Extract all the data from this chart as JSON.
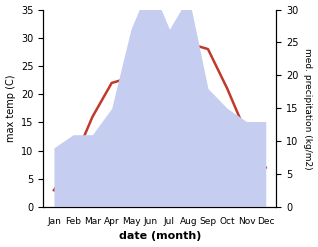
{
  "months": [
    "Jan",
    "Feb",
    "Mar",
    "Apr",
    "May",
    "Jun",
    "Jul",
    "Aug",
    "Sep",
    "Oct",
    "Nov",
    "Dec"
  ],
  "temperature": [
    3,
    8,
    16,
    22,
    23,
    26,
    29,
    29,
    28,
    21,
    13,
    7
  ],
  "precipitation": [
    9,
    11,
    11,
    15,
    27,
    34,
    27,
    32,
    18,
    15,
    13,
    13
  ],
  "temp_color": "#c0392b",
  "precip_color": "#c5cdf0",
  "xlabel": "date (month)",
  "ylabel_left": "max temp (C)",
  "ylabel_right": "med. precipitation (kg/m2)",
  "ylim_left": [
    0,
    35
  ],
  "ylim_right": [
    0,
    30
  ],
  "yticks_left": [
    0,
    5,
    10,
    15,
    20,
    25,
    30,
    35
  ],
  "yticks_right": [
    0,
    5,
    10,
    15,
    20,
    25,
    30
  ],
  "background_color": "#ffffff"
}
